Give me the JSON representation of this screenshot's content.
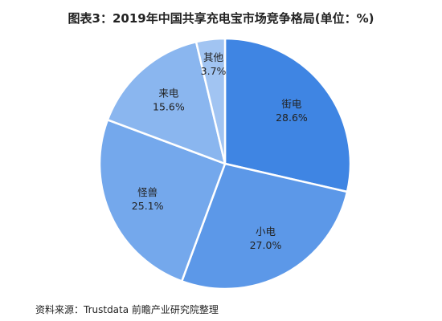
{
  "title": "图表3：2019年中国共享充电宝市场竞争格局(单位：%)",
  "source": "资料来源：Trustdata 前瞻产业研究院整理",
  "chart_data": {
    "type": "pie",
    "title": "图表3：2019年中国共享充电宝市场竞争格局(单位：%)",
    "unit": "%",
    "start": "12 o'clock",
    "direction": "clockwise",
    "slices": [
      {
        "name": "街电",
        "value": 28.6,
        "label": "28.6%",
        "color": "#3f85e3"
      },
      {
        "name": "小电",
        "value": 27.0,
        "label": "27.0%",
        "color": "#5c98e8"
      },
      {
        "name": "怪兽",
        "value": 25.1,
        "label": "25.1%",
        "color": "#74a8ec"
      },
      {
        "name": "来电",
        "value": 15.6,
        "label": "15.6%",
        "color": "#8ab6ef"
      },
      {
        "name": "其他",
        "value": 3.7,
        "label": "3.7%",
        "color": "#a1c4f2"
      }
    ]
  }
}
